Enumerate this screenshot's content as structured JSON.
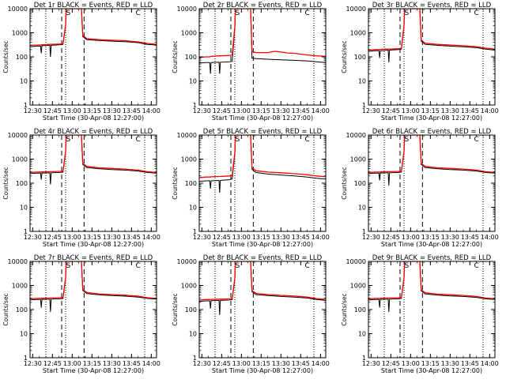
{
  "colors": {
    "events": "#000000",
    "lld": "#ff0000",
    "axis": "#000000"
  },
  "panel_common": {
    "title_suffix": "BLACK = Events, RED = LLD",
    "xlabel": "Start Time (30-Apr-08 12:27:00)",
    "ylabel": "Counts/sec",
    "x_ticks": [
      "12:30",
      "12:45",
      "13:00",
      "13:15",
      "13:30",
      "13:45",
      "14:00"
    ],
    "y_ticks": [
      "1",
      "10",
      "100",
      "1000",
      "10000"
    ],
    "marker_c": "C",
    "marker_s": "S"
  },
  "chart_data": [
    {
      "type": "line",
      "title": "Det 1r",
      "xlabel": "Start Time (30-Apr-08 12:27:00)",
      "ylabel": "Counts/sec",
      "x_unit": "minutes after 12:27:00",
      "xlim": [
        3,
        99
      ],
      "ylim": [
        1,
        10000
      ],
      "y_scale": "log",
      "vlines_dotted": [
        15,
        30,
        90
      ],
      "vlines_dashed": [
        27,
        44
      ],
      "markers": {
        "S": 32,
        "C": 85
      },
      "series": [
        {
          "name": "Events",
          "color": "#000000",
          "x": [
            3,
            8,
            11,
            11.5,
            12,
            18,
            18.5,
            19,
            26,
            28,
            30,
            30.5,
            42,
            43,
            46,
            55,
            65,
            75,
            85,
            92,
            99
          ],
          "y": [
            260,
            280,
            280,
            140,
            290,
            300,
            100,
            300,
            320,
            330,
            2000,
            10000,
            10000,
            700,
            520,
            480,
            450,
            430,
            390,
            330,
            310
          ]
        },
        {
          "name": "LLD",
          "color": "#ff0000",
          "x": [
            3,
            8,
            11,
            12,
            18,
            19,
            26,
            28,
            30,
            30.5,
            42,
            43,
            46,
            55,
            65,
            75,
            85,
            92,
            99
          ],
          "y": [
            300,
            310,
            310,
            320,
            330,
            330,
            340,
            360,
            2200,
            10000,
            10000,
            780,
            570,
            520,
            490,
            470,
            420,
            360,
            330
          ]
        }
      ]
    },
    {
      "type": "line",
      "title": "Det 2r",
      "xlabel": "Start Time (30-Apr-08 12:27:00)",
      "ylabel": "Counts/sec",
      "x_unit": "minutes after 12:27:00",
      "xlim": [
        3,
        99
      ],
      "ylim": [
        1,
        10000
      ],
      "y_scale": "log",
      "vlines_dotted": [
        15,
        30,
        90
      ],
      "vlines_dashed": [
        27,
        44
      ],
      "markers": {
        "S": 32,
        "C": 85
      },
      "series": [
        {
          "name": "Events",
          "color": "#000000",
          "x": [
            3,
            8,
            11,
            11.5,
            12,
            18,
            18.5,
            19,
            26,
            28,
            30,
            30.5,
            42,
            43,
            46,
            55,
            65,
            75,
            85,
            92,
            99
          ],
          "y": [
            55,
            58,
            58,
            20,
            58,
            60,
            20,
            60,
            62,
            65,
            1500,
            10000,
            10000,
            90,
            85,
            80,
            75,
            72,
            68,
            62,
            58
          ]
        },
        {
          "name": "LLD",
          "color": "#ff0000",
          "x": [
            3,
            8,
            11,
            12,
            18,
            19,
            26,
            28,
            30,
            30.5,
            42,
            43,
            46,
            55,
            60,
            65,
            70,
            75,
            85,
            92,
            99
          ],
          "y": [
            95,
            100,
            100,
            105,
            110,
            110,
            115,
            120,
            1800,
            10000,
            10000,
            170,
            150,
            150,
            170,
            160,
            145,
            140,
            120,
            110,
            105
          ]
        }
      ]
    },
    {
      "type": "line",
      "title": "Det 3r",
      "xlabel": "Start Time (30-Apr-08 12:27:00)",
      "ylabel": "Counts/sec",
      "x_unit": "minutes after 12:27:00",
      "xlim": [
        3,
        99
      ],
      "ylim": [
        1,
        10000
      ],
      "y_scale": "log",
      "vlines_dotted": [
        15,
        30,
        90
      ],
      "vlines_dashed": [
        27,
        44
      ],
      "markers": {
        "S": 32,
        "C": 85
      },
      "series": [
        {
          "name": "Events",
          "color": "#000000",
          "x": [
            3,
            8,
            11,
            11.5,
            12,
            18,
            18.5,
            19,
            26,
            28,
            30,
            30.5,
            42,
            43,
            46,
            55,
            65,
            75,
            85,
            92,
            99
          ],
          "y": [
            170,
            180,
            180,
            90,
            180,
            190,
            60,
            190,
            200,
            210,
            1800,
            10000,
            10000,
            450,
            330,
            300,
            280,
            260,
            240,
            210,
            190
          ]
        },
        {
          "name": "LLD",
          "color": "#ff0000",
          "x": [
            3,
            8,
            11,
            12,
            18,
            19,
            26,
            28,
            30,
            30.5,
            42,
            43,
            46,
            55,
            65,
            75,
            85,
            92,
            99
          ],
          "y": [
            190,
            200,
            200,
            205,
            210,
            210,
            220,
            230,
            2000,
            10000,
            10000,
            500,
            370,
            330,
            310,
            290,
            265,
            230,
            210
          ]
        }
      ]
    },
    {
      "type": "line",
      "title": "Det 4r",
      "xlabel": "Start Time (30-Apr-08 12:27:00)",
      "ylabel": "Counts/sec",
      "x_unit": "minutes after 12:27:00",
      "xlim": [
        3,
        99
      ],
      "ylim": [
        1,
        10000
      ],
      "y_scale": "log",
      "vlines_dotted": [
        15,
        30,
        90
      ],
      "vlines_dashed": [
        27,
        44
      ],
      "markers": {
        "S": 32,
        "C": 85
      },
      "series": [
        {
          "name": "Events",
          "color": "#000000",
          "x": [
            3,
            8,
            11,
            11.5,
            12,
            18,
            18.5,
            19,
            26,
            28,
            30,
            30.5,
            42,
            43,
            46,
            55,
            65,
            75,
            85,
            92,
            99
          ],
          "y": [
            250,
            260,
            260,
            140,
            265,
            270,
            90,
            270,
            280,
            290,
            1900,
            10000,
            10000,
            600,
            450,
            400,
            370,
            350,
            320,
            280,
            260
          ]
        },
        {
          "name": "LLD",
          "color": "#ff0000",
          "x": [
            3,
            8,
            11,
            12,
            18,
            19,
            26,
            28,
            30,
            30.5,
            42,
            43,
            46,
            55,
            65,
            75,
            85,
            92,
            99
          ],
          "y": [
            280,
            290,
            290,
            295,
            300,
            300,
            310,
            320,
            2100,
            10000,
            10000,
            660,
            500,
            440,
            410,
            385,
            350,
            300,
            280
          ]
        }
      ]
    },
    {
      "type": "line",
      "title": "Det 5r",
      "xlabel": "Start Time (30-Apr-08 12:27:00)",
      "ylabel": "Counts/sec",
      "x_unit": "minutes after 12:27:00",
      "xlim": [
        3,
        99
      ],
      "ylim": [
        1,
        10000
      ],
      "y_scale": "log",
      "vlines_dotted": [
        15,
        30,
        90
      ],
      "vlines_dashed": [
        27,
        44
      ],
      "markers": {
        "S": 32,
        "C": 85
      },
      "series": [
        {
          "name": "Events",
          "color": "#000000",
          "x": [
            3,
            8,
            11,
            11.5,
            12,
            18,
            18.5,
            19,
            26,
            28,
            30,
            30.5,
            42,
            43,
            46,
            55,
            65,
            75,
            85,
            92,
            99
          ],
          "y": [
            120,
            125,
            125,
            60,
            125,
            130,
            40,
            130,
            140,
            150,
            1600,
            10000,
            10000,
            380,
            280,
            240,
            220,
            200,
            180,
            160,
            150
          ]
        },
        {
          "name": "LLD",
          "color": "#ff0000",
          "x": [
            3,
            8,
            11,
            12,
            18,
            19,
            26,
            28,
            30,
            30.5,
            42,
            43,
            46,
            55,
            65,
            75,
            85,
            92,
            99
          ],
          "y": [
            170,
            180,
            180,
            185,
            190,
            190,
            200,
            210,
            1900,
            10000,
            10000,
            450,
            330,
            290,
            270,
            250,
            225,
            200,
            185
          ]
        }
      ]
    },
    {
      "type": "line",
      "title": "Det 6r",
      "xlabel": "Start Time (30-Apr-08 12:27:00)",
      "ylabel": "Counts/sec",
      "x_unit": "minutes after 12:27:00",
      "xlim": [
        3,
        99
      ],
      "ylim": [
        1,
        10000
      ],
      "y_scale": "log",
      "vlines_dotted": [
        15,
        30,
        90
      ],
      "vlines_dashed": [
        27,
        44
      ],
      "markers": {
        "S": 32,
        "C": 85
      },
      "series": [
        {
          "name": "Events",
          "color": "#000000",
          "x": [
            3,
            8,
            11,
            11.5,
            12,
            18,
            18.5,
            19,
            26,
            28,
            30,
            30.5,
            42,
            43,
            46,
            55,
            65,
            75,
            85,
            92,
            99
          ],
          "y": [
            250,
            260,
            260,
            130,
            265,
            270,
            80,
            270,
            280,
            290,
            1900,
            10000,
            10000,
            600,
            450,
            400,
            370,
            350,
            320,
            280,
            260
          ]
        },
        {
          "name": "LLD",
          "color": "#ff0000",
          "x": [
            3,
            8,
            11,
            12,
            18,
            19,
            26,
            28,
            30,
            30.5,
            42,
            43,
            46,
            55,
            65,
            75,
            85,
            92,
            99
          ],
          "y": [
            280,
            290,
            290,
            295,
            300,
            300,
            310,
            320,
            2100,
            10000,
            10000,
            660,
            500,
            440,
            410,
            385,
            350,
            300,
            280
          ]
        }
      ]
    },
    {
      "type": "line",
      "title": "Det 7r",
      "xlabel": "Start Time (30-Apr-08 12:27:00)",
      "ylabel": "Counts/sec",
      "x_unit": "minutes after 12:27:00",
      "xlim": [
        3,
        99
      ],
      "ylim": [
        1,
        10000
      ],
      "y_scale": "log",
      "vlines_dotted": [
        15,
        30,
        90
      ],
      "vlines_dashed": [
        27,
        44
      ],
      "markers": {
        "S": 32,
        "C": 85
      },
      "series": [
        {
          "name": "Events",
          "color": "#000000",
          "x": [
            3,
            8,
            11,
            11.5,
            12,
            18,
            18.5,
            19,
            26,
            28,
            30,
            30.5,
            42,
            43,
            46,
            55,
            65,
            75,
            85,
            92,
            99
          ],
          "y": [
            250,
            260,
            260,
            120,
            265,
            270,
            80,
            270,
            280,
            290,
            1900,
            10000,
            10000,
            620,
            460,
            410,
            380,
            360,
            330,
            290,
            270
          ]
        },
        {
          "name": "LLD",
          "color": "#ff0000",
          "x": [
            3,
            8,
            11,
            12,
            18,
            19,
            26,
            28,
            30,
            30.5,
            42,
            43,
            46,
            55,
            65,
            75,
            85,
            92,
            99
          ],
          "y": [
            280,
            290,
            290,
            295,
            300,
            300,
            310,
            320,
            2100,
            10000,
            10000,
            680,
            510,
            450,
            420,
            395,
            360,
            310,
            290
          ]
        }
      ]
    },
    {
      "type": "line",
      "title": "Det 8r",
      "xlabel": "Start Time (30-Apr-08 12:27:00)",
      "ylabel": "Counts/sec",
      "x_unit": "minutes after 12:27:00",
      "xlim": [
        3,
        99
      ],
      "ylim": [
        1,
        10000
      ],
      "y_scale": "log",
      "vlines_dotted": [
        15,
        30,
        90
      ],
      "vlines_dashed": [
        27,
        44
      ],
      "markers": {
        "S": 32,
        "C": 85
      },
      "series": [
        {
          "name": "Events",
          "color": "#000000",
          "x": [
            3,
            8,
            11,
            11.5,
            12,
            18,
            18.5,
            19,
            26,
            28,
            30,
            30.5,
            42,
            43,
            46,
            55,
            65,
            75,
            85,
            92,
            99
          ],
          "y": [
            220,
            230,
            230,
            110,
            235,
            240,
            60,
            240,
            250,
            260,
            1800,
            10000,
            10000,
            560,
            420,
            380,
            350,
            330,
            300,
            260,
            240
          ]
        },
        {
          "name": "LLD",
          "color": "#ff0000",
          "x": [
            3,
            8,
            11,
            12,
            18,
            19,
            26,
            28,
            30,
            30.5,
            42,
            43,
            46,
            55,
            65,
            75,
            85,
            92,
            99
          ],
          "y": [
            250,
            260,
            260,
            265,
            270,
            270,
            280,
            290,
            2000,
            10000,
            10000,
            620,
            470,
            420,
            390,
            365,
            330,
            285,
            265
          ]
        }
      ]
    },
    {
      "type": "line",
      "title": "Det 9r",
      "xlabel": "Start Time (30-Apr-08 12:27:00)",
      "ylabel": "Counts/sec",
      "x_unit": "minutes after 12:27:00",
      "xlim": [
        3,
        99
      ],
      "ylim": [
        1,
        10000
      ],
      "y_scale": "log",
      "vlines_dotted": [
        15,
        30,
        90
      ],
      "vlines_dashed": [
        27,
        44
      ],
      "markers": {
        "S": 32,
        "C": 85
      },
      "series": [
        {
          "name": "Events",
          "color": "#000000",
          "x": [
            3,
            8,
            11,
            11.5,
            12,
            18,
            18.5,
            19,
            26,
            28,
            30,
            30.5,
            42,
            43,
            46,
            55,
            65,
            75,
            85,
            92,
            99
          ],
          "y": [
            250,
            260,
            260,
            120,
            265,
            270,
            80,
            270,
            280,
            290,
            1900,
            10000,
            10000,
            600,
            450,
            400,
            370,
            350,
            320,
            280,
            260
          ]
        },
        {
          "name": "LLD",
          "color": "#ff0000",
          "x": [
            3,
            8,
            11,
            12,
            18,
            19,
            26,
            28,
            30,
            30.5,
            42,
            43,
            46,
            55,
            65,
            75,
            85,
            92,
            99
          ],
          "y": [
            280,
            290,
            290,
            295,
            300,
            300,
            310,
            320,
            2100,
            10000,
            10000,
            660,
            500,
            440,
            410,
            385,
            350,
            300,
            280
          ]
        }
      ]
    }
  ]
}
